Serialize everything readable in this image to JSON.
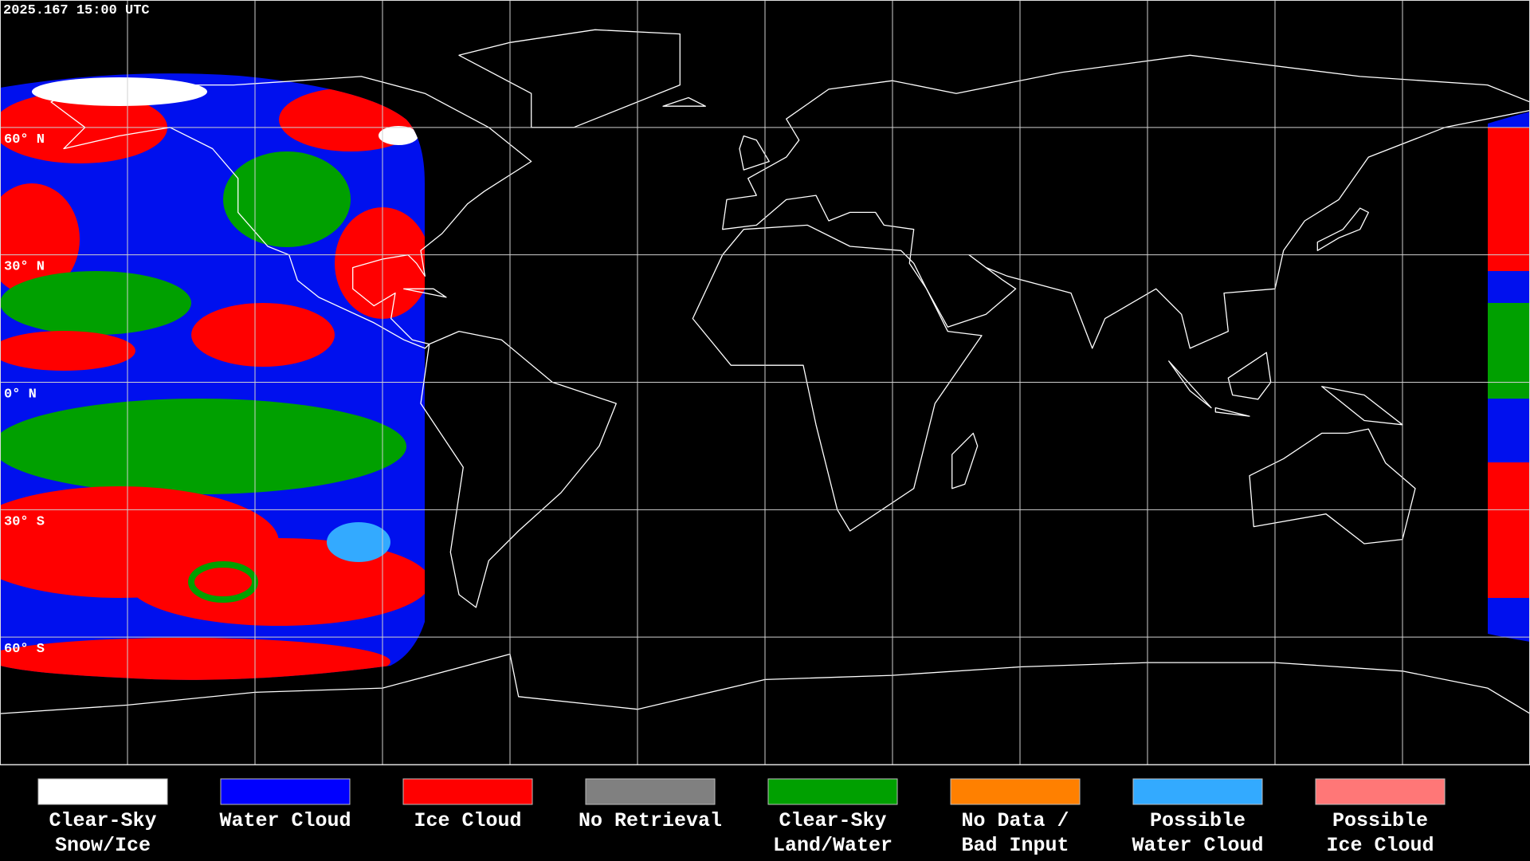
{
  "map": {
    "timestamp": "2025.167 15:00 UTC",
    "lat_labels": [
      "60° N",
      "30° N",
      "0° N",
      "30° S",
      "60° S"
    ]
  },
  "legend": [
    {
      "lines": [
        "Clear-Sky",
        "Snow/Ice"
      ],
      "color": "#ffffff"
    },
    {
      "lines": [
        "Water Cloud"
      ],
      "color": "#0000ff"
    },
    {
      "lines": [
        "Ice Cloud"
      ],
      "color": "#ff0000"
    },
    {
      "lines": [
        "No Retrieval"
      ],
      "color": "#808080"
    },
    {
      "lines": [
        "Clear-Sky",
        "Land/Water"
      ],
      "color": "#00a000"
    },
    {
      "lines": [
        "No Data /",
        "Bad Input"
      ],
      "color": "#ff8000"
    },
    {
      "lines": [
        "Possible",
        "Water Cloud"
      ],
      "color": "#33aaff"
    },
    {
      "lines": [
        "Possible",
        "Ice Cloud"
      ],
      "color": "#ff7777"
    }
  ]
}
